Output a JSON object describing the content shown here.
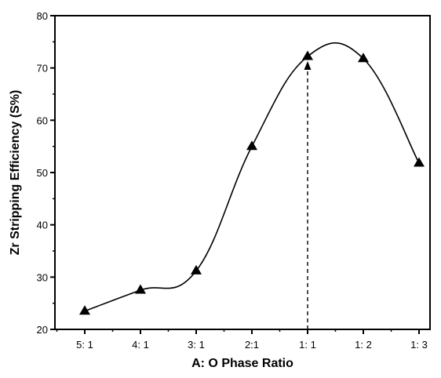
{
  "chart_data": {
    "type": "line",
    "categories": [
      "5: 1",
      "4: 1",
      "3: 1",
      "2:1",
      "1: 1",
      "1: 2",
      "1: 3"
    ],
    "series": [
      {
        "values": [
          23.5,
          27.5,
          31.2,
          55,
          72.2,
          71.8,
          51.8
        ]
      }
    ],
    "xlabel": "A: O Phase Ratio",
    "ylabel": "Zr Stripping Efficiency (S%)",
    "ylim": [
      20,
      80
    ],
    "yticks": [
      20,
      30,
      40,
      50,
      60,
      70,
      80
    ],
    "marker": "filled-triangle",
    "curve": "smooth",
    "annotation": {
      "type": "dashed-arrow-to-point",
      "category": "1: 1"
    },
    "grid": false,
    "colors": {
      "line": "#000000",
      "marker": "#000000",
      "axis": "#000000"
    }
  }
}
